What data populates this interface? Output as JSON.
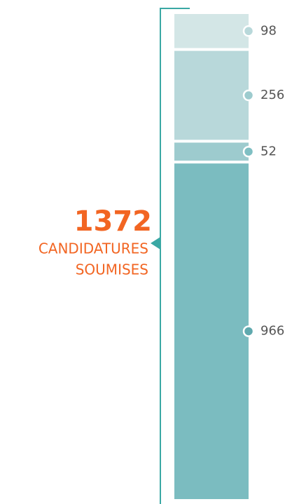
{
  "chart_data": {
    "type": "stacked-bar",
    "total": 1372,
    "total_caption": [
      "CANDIDATURES",
      "SOUMISES"
    ],
    "values": [
      98,
      256,
      52,
      966
    ],
    "colors": [
      "#d3e6e6",
      "#b8d8da",
      "#9dcbce",
      "#7bbcc0"
    ],
    "dot_colors": [
      "#b8d8da",
      "#9dcbce",
      "#7fbfc3",
      "#5fa9ae"
    ],
    "accent_color": "#f26522",
    "bracket_color": "#3aa8a4"
  }
}
